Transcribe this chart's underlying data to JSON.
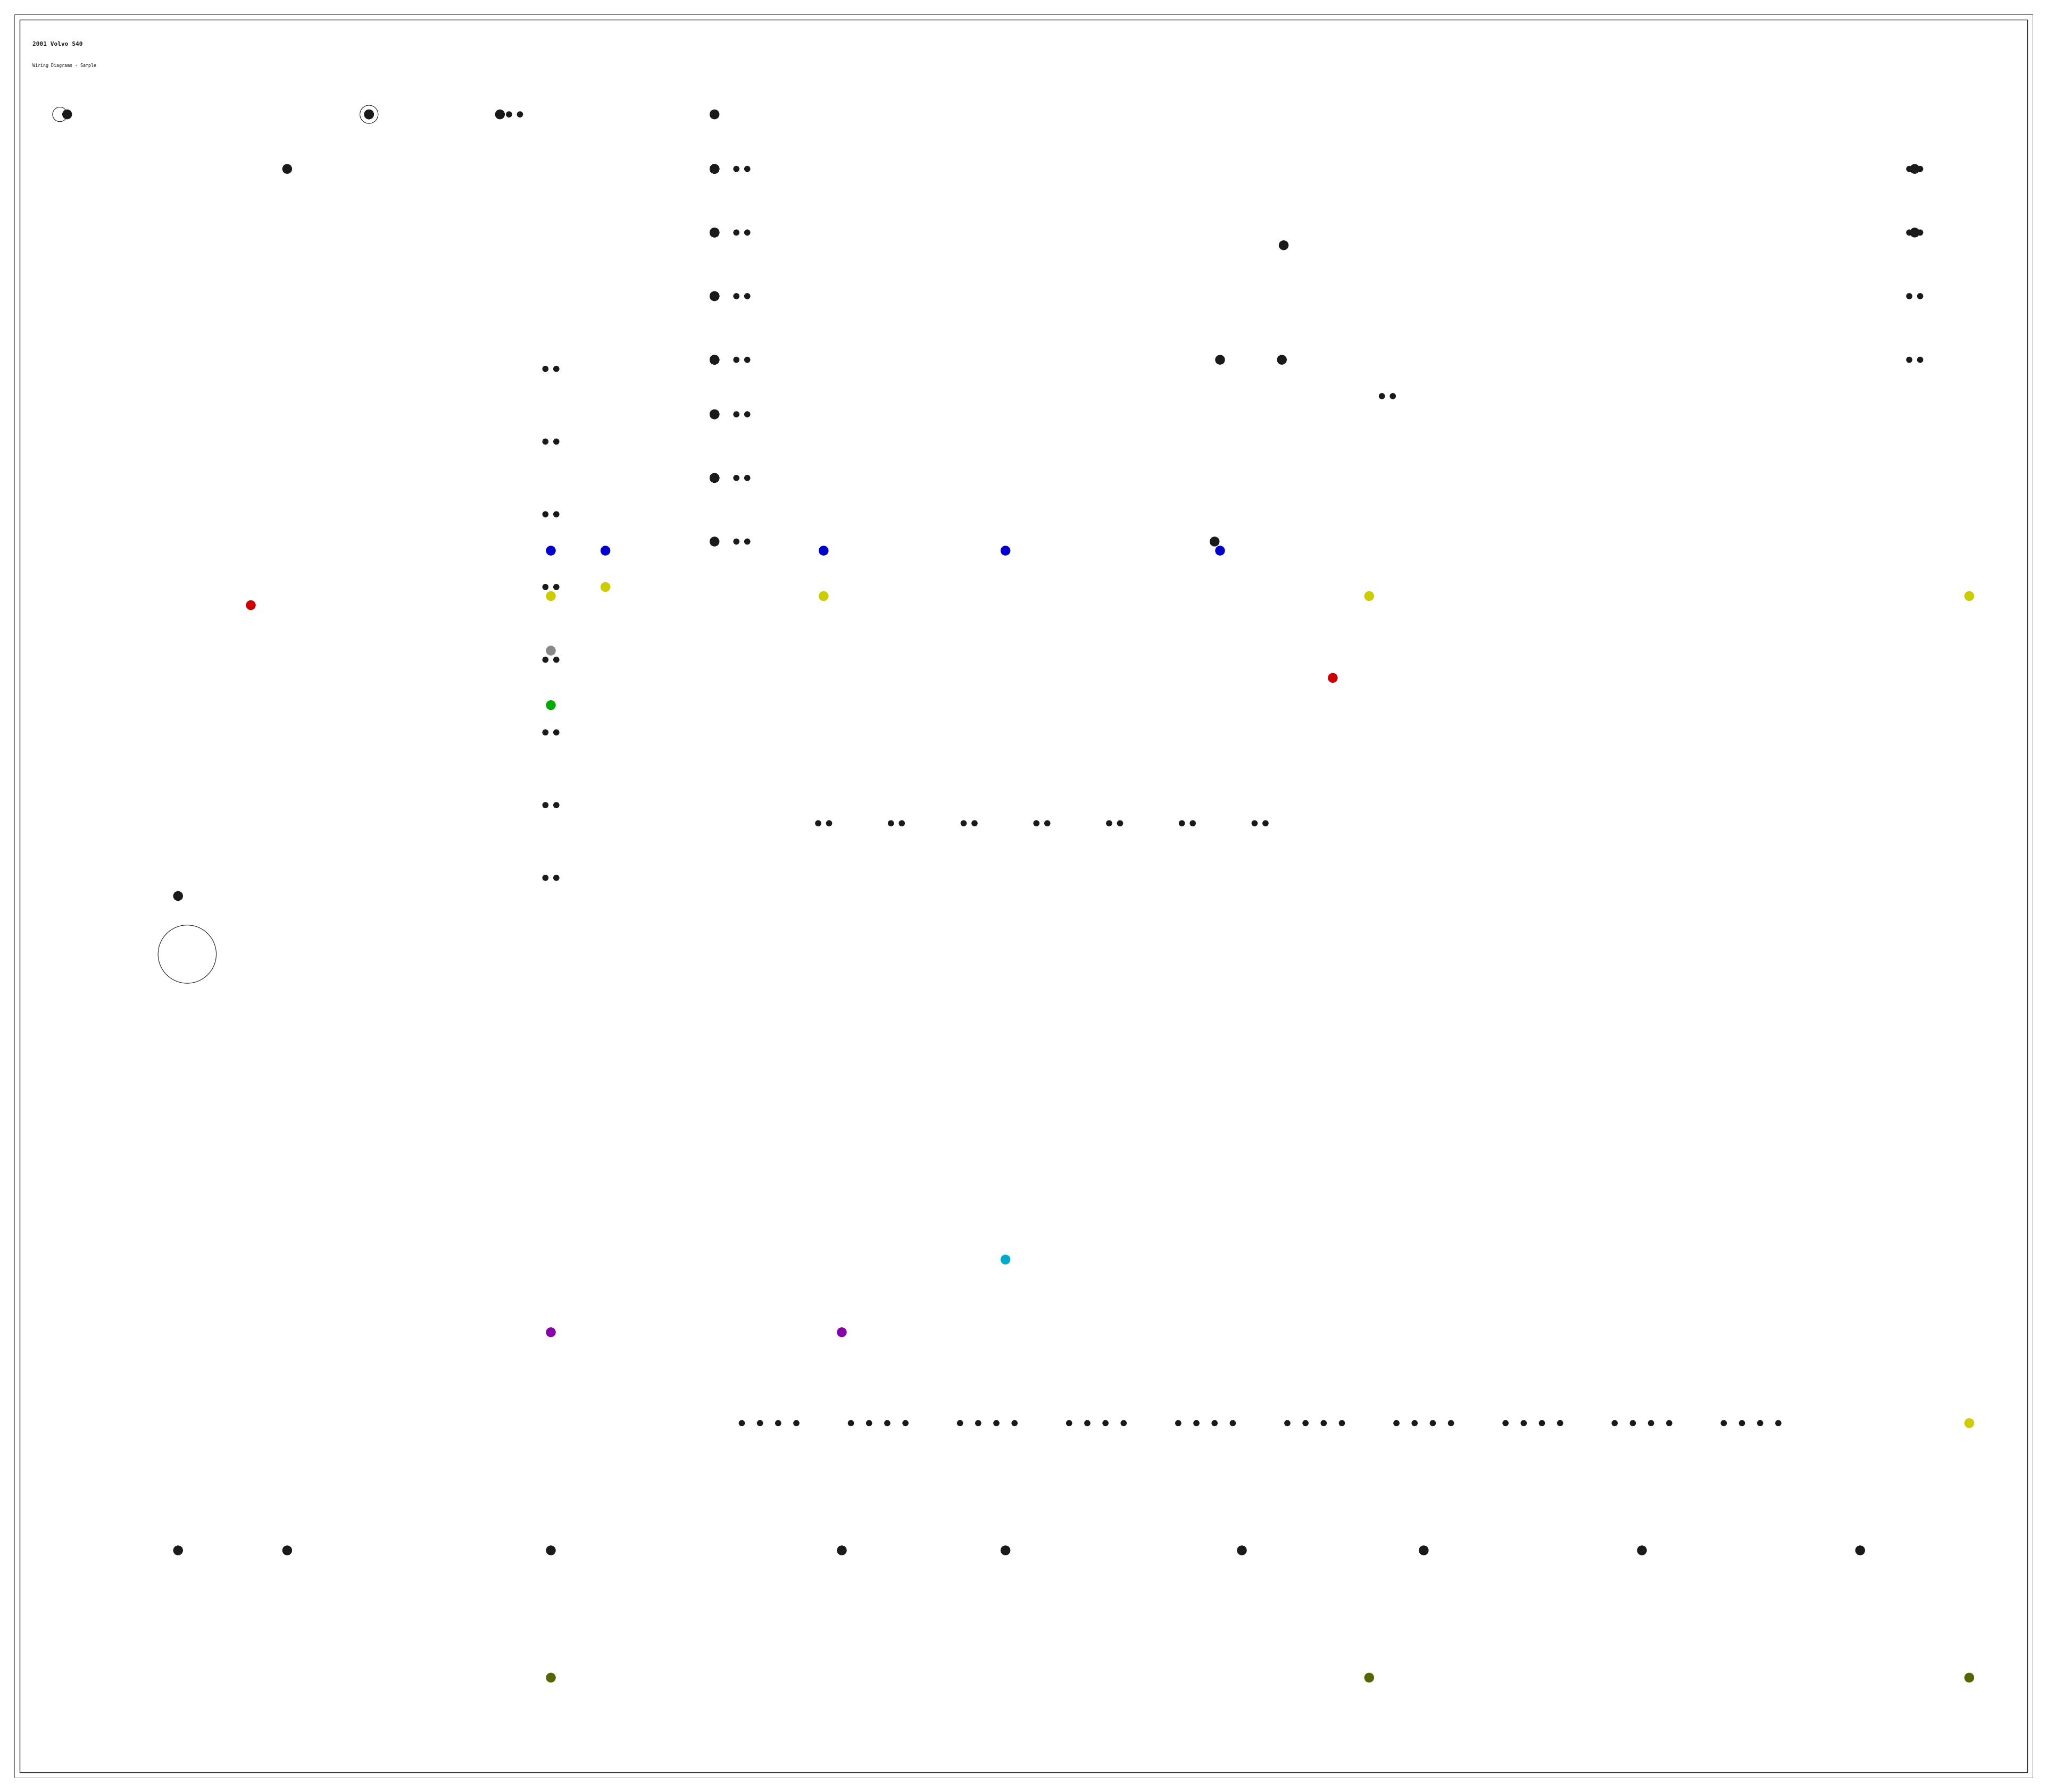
{
  "bg_color": "#ffffff",
  "BLACK": "#1a1a1a",
  "RED": "#cc0000",
  "BLUE": "#0000cc",
  "YELLOW": "#cccc00",
  "GREEN": "#00aa00",
  "CYAN": "#00aacc",
  "PURPLE": "#8800aa",
  "DKGREEN": "#556600",
  "GRAY": "#888888",
  "figsize": [
    38.4,
    33.5
  ],
  "xlim": [
    0,
    1120
  ],
  "ylim": [
    0,
    980
  ]
}
